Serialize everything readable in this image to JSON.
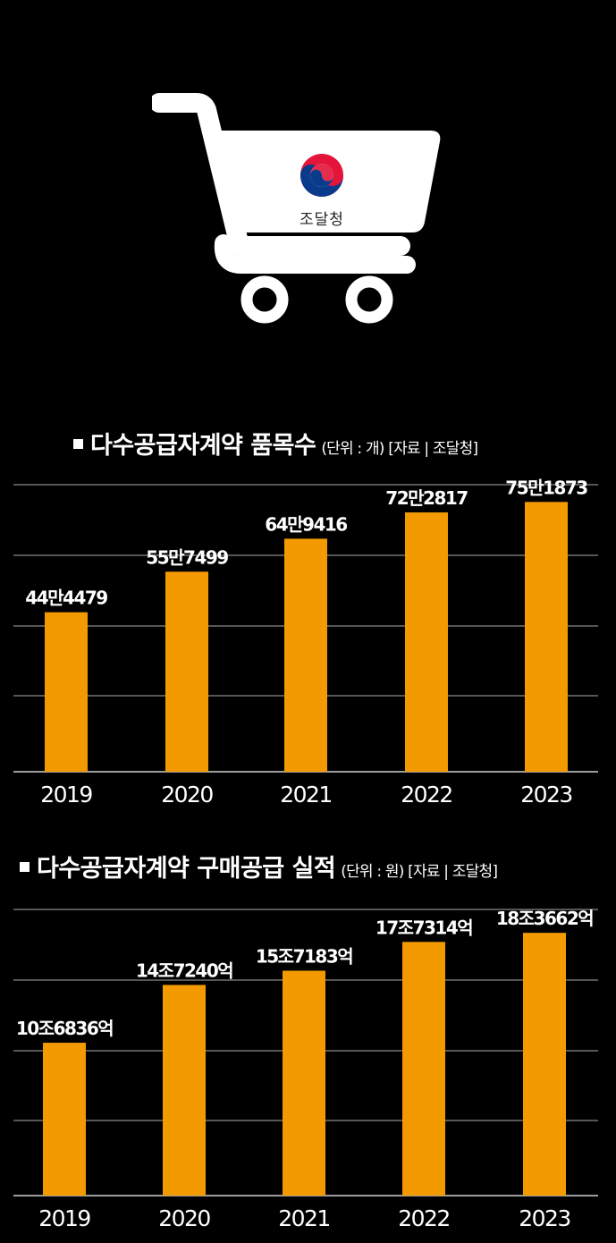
{
  "logo": {
    "text": "조달청",
    "description": "shopping cart with Public Procurement Service emblem"
  },
  "colors": {
    "background": "#000000",
    "bar": "#f39a00",
    "grid": "#8a8a8a",
    "text": "#ffffff"
  },
  "chart_data": [
    {
      "type": "bar",
      "title": "다수공급자계약 품목수",
      "subtitle": "(단위 : 개) [자료 | 조달청]",
      "categories": [
        "2019",
        "2020",
        "2021",
        "2022",
        "2023"
      ],
      "values": [
        444479,
        557499,
        649416,
        722817,
        751873
      ],
      "labels": [
        "44만4479",
        "55만7499",
        "64만9416",
        "72만2817",
        "75만1873"
      ],
      "ylim": [
        0,
        800000
      ],
      "grid": true,
      "legend": "none"
    },
    {
      "type": "bar",
      "title": "다수공급자계약 구매공급 실적",
      "subtitle": "(단위 : 원) [자료 | 조달청]",
      "categories": [
        "2019",
        "2020",
        "2021",
        "2022",
        "2023"
      ],
      "values": [
        10.6836,
        14.724,
        15.7183,
        17.7314,
        18.3662
      ],
      "labels": [
        "10조6836억",
        "14조7240억",
        "15조7183억",
        "17조7314억",
        "18조3662억"
      ],
      "ylim": [
        0,
        20
      ],
      "grid": true,
      "legend": "none"
    }
  ]
}
